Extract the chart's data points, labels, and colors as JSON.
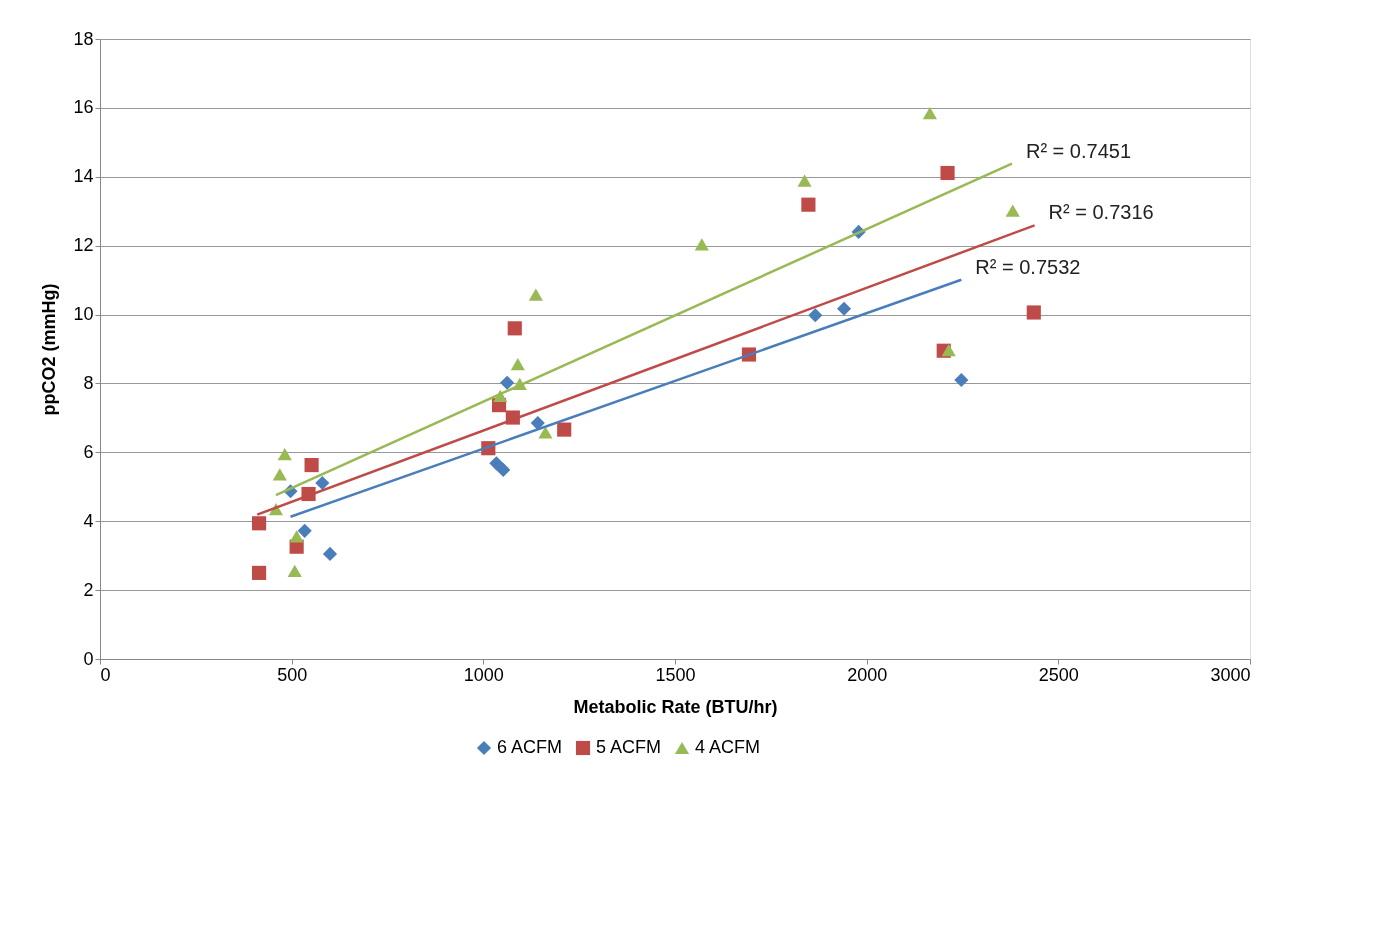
{
  "chart_data": {
    "type": "scatter",
    "xlabel": "Metabolic Rate (BTU/hr)",
    "ylabel": "ppCO2 (mmHg)",
    "xlim": [
      0,
      3000
    ],
    "xticks": [
      0,
      500,
      1000,
      1500,
      2000,
      2500,
      3000
    ],
    "ylim": [
      0,
      18
    ],
    "yticks": [
      0,
      2,
      4,
      6,
      8,
      10,
      12,
      14,
      16,
      18
    ],
    "grid": "y",
    "legend": "bottom",
    "series": [
      {
        "name": "6 ACFM",
        "color": "#4a7ebb",
        "marker": "diamond",
        "x": [
          497,
          580,
          534,
          600,
          1034,
          1052,
          1062,
          1142,
          1866,
          1941,
          1979,
          2247
        ],
        "values": [
          4.87,
          5.11,
          3.72,
          3.05,
          5.68,
          5.49,
          8.02,
          6.85,
          9.98,
          10.17,
          12.4,
          8.1
        ]
      },
      {
        "name": "5 ACFM",
        "color": "#be4b48",
        "marker": "square",
        "x": [
          415,
          415,
          513,
          544,
          552,
          1013,
          1041,
          1077,
          1082,
          1211,
          1693,
          1848,
          2201,
          2211,
          2436
        ],
        "values": [
          3.94,
          2.5,
          3.26,
          4.79,
          5.63,
          6.12,
          7.37,
          7.01,
          9.6,
          6.66,
          8.84,
          13.19,
          8.95,
          14.11,
          10.06
        ]
      },
      {
        "name": "4 ACFM",
        "color": "#98b954",
        "marker": "triangle",
        "x": [
          482,
          469,
          459,
          513,
          508,
          1044,
          1090,
          1095,
          1137,
          1162,
          1570,
          1838,
          2165,
          2214,
          2381
        ],
        "values": [
          5.95,
          5.36,
          4.35,
          3.56,
          2.56,
          7.64,
          8.56,
          7.99,
          10.58,
          6.58,
          12.04,
          13.89,
          15.85,
          8.97,
          13.02
        ]
      },
      {
        "type": "line",
        "color": "#4a7ebb",
        "x": [
          497,
          2247
        ],
        "values": [
          4.13,
          11.01
        ]
      },
      {
        "type": "line",
        "color": "#be4b48",
        "x": [
          410,
          2438
        ],
        "values": [
          4.19,
          12.59
        ]
      },
      {
        "type": "line",
        "color": "#98b954",
        "x": [
          459,
          2379
        ],
        "values": [
          4.76,
          14.38
        ]
      }
    ],
    "annotations": [
      {
        "text": "R² = 0.7451",
        "x": 2379,
        "y": 14.38
      },
      {
        "text": "R² = 0.7316",
        "x": 2438,
        "y": 12.59
      },
      {
        "text": "R² = 0.7532",
        "x": 2247,
        "y": 11.01
      }
    ]
  }
}
